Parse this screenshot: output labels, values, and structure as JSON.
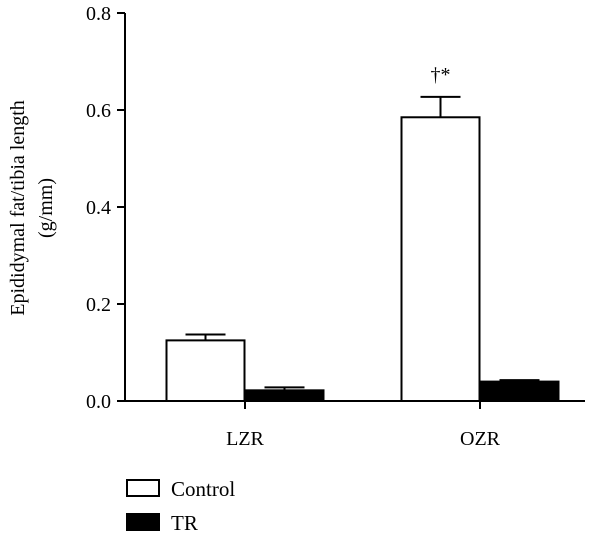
{
  "chart_data": {
    "type": "bar",
    "title": "",
    "ylabel_line1": "Epididymal fat/tibia length",
    "ylabel_line2": "(g/mm)",
    "xlabel": "",
    "categories": [
      "LZR",
      "OZR"
    ],
    "series": [
      {
        "name": "Control",
        "values": [
          0.125,
          0.585
        ],
        "errors": [
          0.012,
          0.042
        ],
        "color": "#ffffff"
      },
      {
        "name": "TR",
        "values": [
          0.022,
          0.04
        ],
        "errors": [
          0.006,
          0.003
        ],
        "color": "#000000"
      }
    ],
    "ylim": [
      0,
      0.8
    ],
    "yticks": [
      "0.0",
      "0.2",
      "0.4",
      "0.6",
      "0.8"
    ],
    "annotations": [
      {
        "category": "OZR",
        "series": "Control",
        "text": "†*"
      }
    ],
    "legend_position": "bottom-left",
    "grid": false
  }
}
